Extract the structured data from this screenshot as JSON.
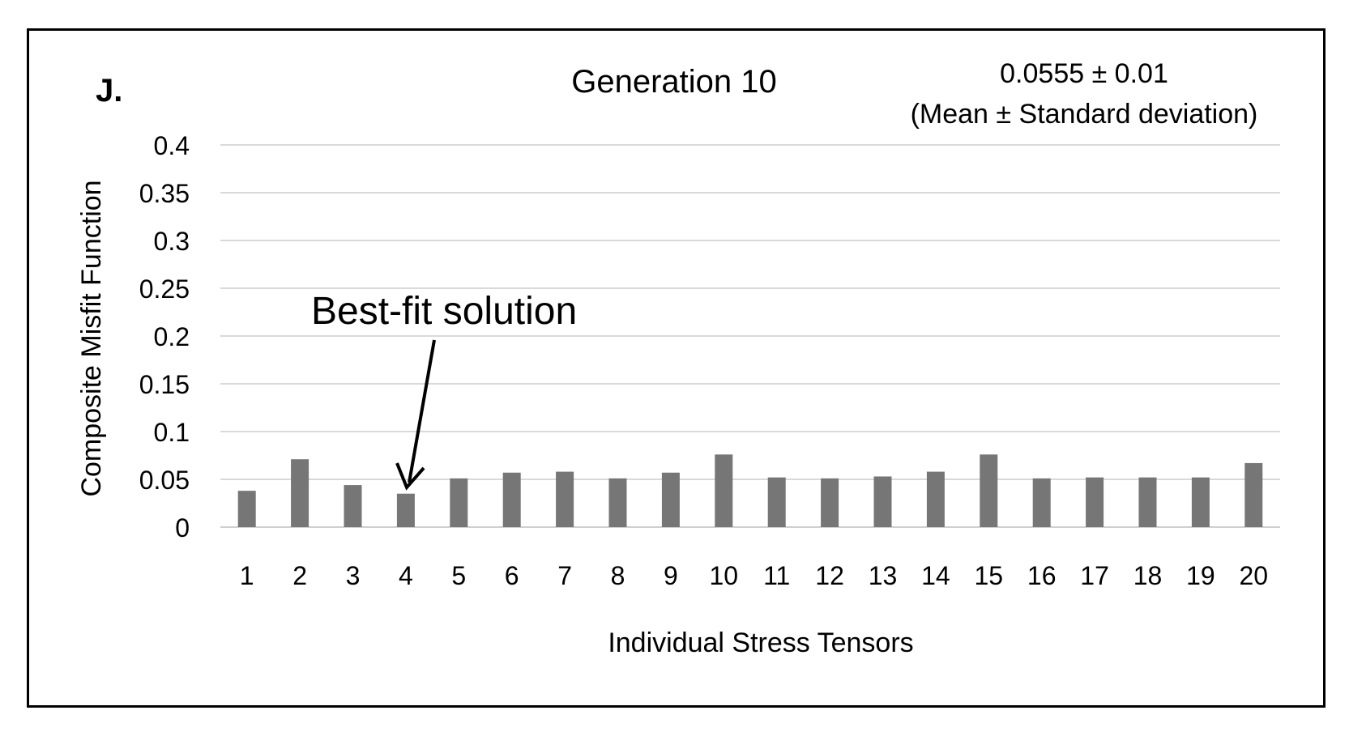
{
  "panel_label": "J.",
  "stats": {
    "line1": "0.0555 ± 0.01",
    "line2": "(Mean ± Standard deviation)"
  },
  "annotation": {
    "text": "Best-fit solution",
    "target_category": "4"
  },
  "colors": {
    "bar": "#767676",
    "grid": "#d9d9d9",
    "frame": "#000000"
  },
  "chart_data": {
    "type": "bar",
    "title": "Generation 10",
    "xlabel": "Individual Stress Tensors",
    "ylabel": "Composite Misfit Function",
    "ylim": [
      0,
      0.4
    ],
    "yticks": [
      "0",
      "0.05",
      "0.1",
      "0.15",
      "0.2",
      "0.25",
      "0.3",
      "0.35",
      "0.4"
    ],
    "grid": true,
    "categories": [
      "1",
      "2",
      "3",
      "4",
      "5",
      "6",
      "7",
      "8",
      "9",
      "10",
      "11",
      "12",
      "13",
      "14",
      "15",
      "16",
      "17",
      "18",
      "19",
      "20"
    ],
    "values": [
      0.038,
      0.071,
      0.044,
      0.035,
      0.051,
      0.057,
      0.058,
      0.051,
      0.057,
      0.076,
      0.052,
      0.051,
      0.053,
      0.058,
      0.076,
      0.051,
      0.052,
      0.052,
      0.052,
      0.067
    ]
  }
}
